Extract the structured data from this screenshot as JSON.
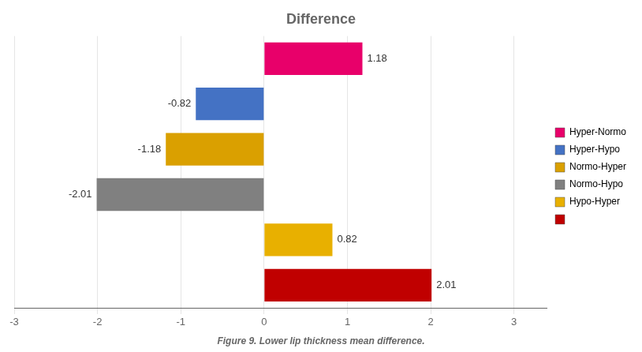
{
  "chart_data": {
    "type": "bar",
    "orientation": "horizontal",
    "title": "Difference",
    "caption": "Figure 9. Lower lip thickness mean difference.",
    "categories": [
      "Hyper-Normo",
      "Hyper-Hypo",
      "Normo-Hyper",
      "Normo-Hypo",
      "Hypo-Hyper",
      null
    ],
    "values": [
      1.18,
      -0.82,
      -1.18,
      -2.01,
      0.82,
      2.01
    ],
    "colors": [
      "#E8006A",
      "#4472C4",
      "#DAA000",
      "#808080",
      "#E8B000",
      "#C00000"
    ],
    "xlim": [
      -3,
      3.4
    ],
    "xticks": [
      -3,
      -2,
      -1,
      0,
      1,
      2,
      3
    ],
    "grid": true,
    "legend": "right",
    "data_labels": true,
    "tick_labels": "x"
  }
}
